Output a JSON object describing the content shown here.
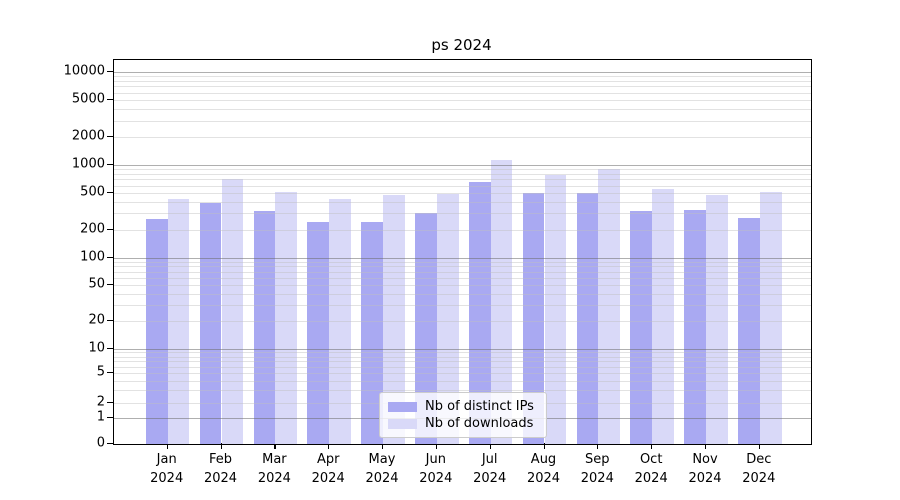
{
  "chart_data": {
    "type": "bar",
    "title": "ps 2024",
    "xlabel": "",
    "ylabel": "",
    "y_scale": "symlog (log above 1, linear 0-1)",
    "ylim": [
      0,
      13500
    ],
    "grid": "horizontal major + minor, drawn over bars",
    "legend_position": "lower center",
    "categories": [
      "Jan",
      "Feb",
      "Mar",
      "Apr",
      "May",
      "Jun",
      "Jul",
      "Aug",
      "Sep",
      "Oct",
      "Nov",
      "Dec"
    ],
    "category_year": "2024",
    "y_ticks": [
      0,
      1,
      2,
      5,
      10,
      20,
      50,
      100,
      200,
      500,
      1000,
      2000,
      5000,
      10000
    ],
    "series": [
      {
        "name": "Nb of distinct IPs",
        "color": "#a9a9f2",
        "values": [
          260,
          385,
          320,
          245,
          245,
          300,
          655,
          495,
          500,
          320,
          330,
          270
        ]
      },
      {
        "name": "Nb of downloads",
        "color": "#d9d9f8",
        "values": [
          425,
          705,
          515,
          430,
          470,
          490,
          1140,
          790,
          915,
          545,
          475,
          510
        ]
      }
    ]
  }
}
